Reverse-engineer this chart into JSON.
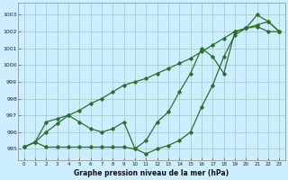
{
  "xlabel": "Graphe pression niveau de la mer (hPa)",
  "background_color": "#cceeff",
  "grid_color": "#aacccc",
  "line_color": "#2d6e2d",
  "xlim": [
    -0.5,
    23.5
  ],
  "ylim": [
    994.3,
    1003.7
  ],
  "yticks": [
    995,
    996,
    997,
    998,
    999,
    1000,
    1001,
    1002,
    1003
  ],
  "xticks": [
    0,
    1,
    2,
    3,
    4,
    5,
    6,
    7,
    8,
    9,
    10,
    11,
    12,
    13,
    14,
    15,
    16,
    17,
    18,
    19,
    20,
    21,
    22,
    23
  ],
  "line1_flat": {
    "x": [
      0,
      1,
      2,
      3,
      4,
      5,
      6,
      7,
      8,
      9,
      10,
      11,
      12,
      13,
      14,
      15,
      16,
      17,
      18,
      19,
      20,
      21,
      22,
      23
    ],
    "y": [
      995.1,
      995.4,
      995.1,
      995.1,
      995.1,
      995.1,
      995.1,
      995.1,
      995.1,
      995.1,
      995.0,
      994.7,
      995.0,
      995.2,
      995.5,
      996.0,
      997.5,
      998.8,
      1000.5,
      1001.8,
      1002.2,
      1002.3,
      1002.0,
      1002.0
    ]
  },
  "line2_wiggly": {
    "x": [
      0,
      1,
      2,
      3,
      4,
      5,
      6,
      7,
      8,
      9,
      10,
      11,
      12,
      13,
      14,
      15,
      16,
      17,
      18,
      19,
      20,
      21,
      22,
      23
    ],
    "y": [
      995.1,
      995.4,
      996.6,
      996.8,
      997.0,
      996.6,
      996.2,
      996.0,
      996.2,
      996.6,
      995.0,
      995.5,
      996.6,
      997.2,
      998.4,
      999.5,
      1001.0,
      1000.5,
      999.5,
      1002.0,
      1002.2,
      1003.0,
      1002.6,
      1002.0
    ]
  },
  "line3_smooth": {
    "x": [
      0,
      1,
      2,
      3,
      4,
      5,
      6,
      7,
      8,
      9,
      10,
      11,
      12,
      13,
      14,
      15,
      16,
      17,
      18,
      19,
      20,
      21,
      22,
      23
    ],
    "y": [
      995.1,
      995.4,
      996.0,
      996.5,
      997.0,
      997.3,
      997.7,
      998.0,
      998.4,
      998.8,
      999.0,
      999.2,
      999.5,
      999.8,
      1000.1,
      1000.4,
      1000.8,
      1001.2,
      1001.6,
      1002.0,
      1002.2,
      1002.4,
      1002.6,
      1002.0
    ]
  }
}
